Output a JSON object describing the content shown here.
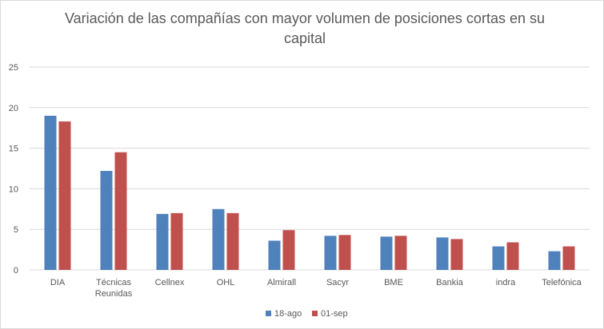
{
  "chart_data": {
    "type": "bar",
    "title": "Variación de las compañías con mayor volumen de posiciones cortas en su capital",
    "xlabel": "",
    "ylabel": "",
    "ylim": [
      0,
      25
    ],
    "yticks": [
      0,
      5,
      10,
      15,
      20,
      25
    ],
    "grid": true,
    "legend_position": "bottom",
    "categories": [
      [
        "DIA"
      ],
      [
        "Técnicas",
        "Reunidas"
      ],
      [
        "Cellnex"
      ],
      [
        "OHL"
      ],
      [
        "Almirall"
      ],
      [
        "Sacyr"
      ],
      [
        "BME"
      ],
      [
        "Bankia"
      ],
      [
        "indra"
      ],
      [
        "Telefónica"
      ]
    ],
    "series": [
      {
        "name": "18-ago",
        "color": "#4f81bd",
        "values": [
          19.0,
          12.2,
          6.9,
          7.5,
          3.6,
          4.2,
          4.1,
          4.0,
          2.9,
          2.3
        ]
      },
      {
        "name": "01-sep",
        "color": "#c0504d",
        "values": [
          18.3,
          14.5,
          7.0,
          7.0,
          4.9,
          4.3,
          4.2,
          3.8,
          3.4,
          2.9
        ]
      }
    ]
  }
}
